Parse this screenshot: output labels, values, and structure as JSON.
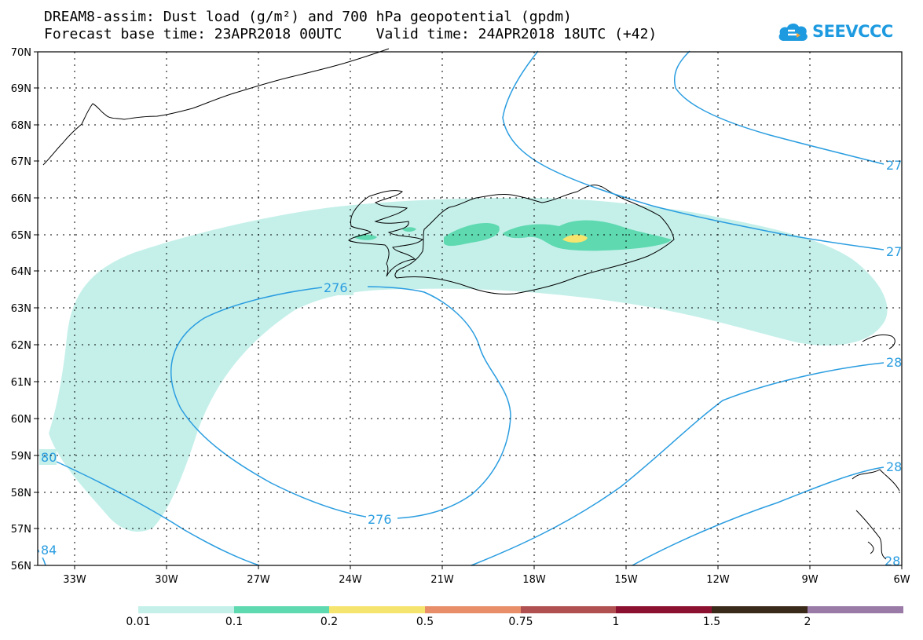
{
  "title_line1": "DREAM8-assim: Dust load (g/m²) and 700 hPa geopotential (gpdm)",
  "title_line2": "Forecast base time: 23APR2018 00UTC    Valid time: 24APR2018 18UTC (+42)",
  "logo_text": "SEEVCCC",
  "lat_labels": [
    "70N",
    "69N",
    "68N",
    "67N",
    "66N",
    "65N",
    "64N",
    "63N",
    "62N",
    "61N",
    "60N",
    "59N",
    "58N",
    "57N",
    "56N"
  ],
  "lon_labels": [
    "33W",
    "30W",
    "27W",
    "24W",
    "21W",
    "18W",
    "15W",
    "12W",
    "9W",
    "6W"
  ],
  "contour_labels": {
    "c276_top": "276",
    "c276_bottom": "276",
    "c280_left": "80",
    "c284_left": "84",
    "c27_upper": "27",
    "c27_mid": "27",
    "c28_right1": "28",
    "c28_right2": "28",
    "c28_right3": "28"
  },
  "colorbar": {
    "labels": [
      "0.01",
      "0.1",
      "0.2",
      "0.5",
      "0.75",
      "1",
      "1.5",
      "2"
    ],
    "colors": [
      "#c5f0ea",
      "#5ed9b0",
      "#f5e56e",
      "#e88f6a",
      "#b05050",
      "#8c1030",
      "#3a2a1a",
      "#9a7aa6"
    ]
  },
  "colors": {
    "contour": "#2a9de0",
    "dust_low": "#c5f0ea",
    "dust_mid": "#5ed9b0",
    "dust_high": "#f5e56e"
  }
}
